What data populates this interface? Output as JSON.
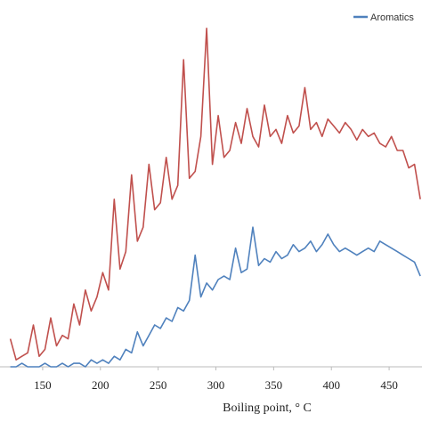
{
  "chart_data": {
    "type": "line",
    "x_label": "Boiling point, ° C",
    "x": [
      122,
      127,
      132,
      137,
      142,
      147,
      152,
      157,
      162,
      167,
      172,
      177,
      182,
      187,
      192,
      197,
      202,
      207,
      212,
      217,
      222,
      227,
      232,
      237,
      242,
      247,
      252,
      257,
      262,
      267,
      272,
      277,
      282,
      287,
      292,
      297,
      302,
      307,
      312,
      317,
      322,
      327,
      332,
      337,
      342,
      347,
      352,
      357,
      362,
      367,
      372,
      377,
      382,
      387,
      392,
      397,
      402,
      407,
      412,
      417,
      422,
      427,
      432,
      437,
      442,
      447,
      452,
      457,
      462,
      467,
      472,
      477
    ],
    "series": [
      {
        "color": "#c0504d",
        "values": [
          8,
          2,
          3,
          4,
          12,
          3,
          5,
          14,
          6,
          9,
          8,
          18,
          12,
          22,
          16,
          20,
          27,
          22,
          48,
          28,
          33,
          55,
          36,
          40,
          58,
          45,
          47,
          60,
          48,
          52,
          88,
          54,
          56,
          66,
          97,
          58,
          72,
          60,
          62,
          70,
          64,
          74,
          66,
          63,
          75,
          66,
          68,
          64,
          72,
          67,
          69,
          80,
          68,
          70,
          66,
          71,
          69,
          67,
          70,
          68,
          65,
          68,
          66,
          67,
          64,
          63,
          66,
          62,
          62,
          57,
          58,
          48
        ]
      },
      {
        "name": "Aromatics",
        "color": "#4f81bd",
        "values": [
          0,
          0,
          1,
          0,
          0,
          0,
          1,
          0,
          0,
          1,
          0,
          1,
          1,
          0,
          2,
          1,
          2,
          1,
          3,
          2,
          5,
          4,
          10,
          6,
          9,
          12,
          11,
          14,
          13,
          17,
          16,
          19,
          32,
          20,
          24,
          22,
          25,
          26,
          25,
          34,
          27,
          28,
          40,
          29,
          31,
          30,
          33,
          31,
          32,
          35,
          33,
          34,
          36,
          33,
          35,
          38,
          35,
          33,
          34,
          33,
          32,
          33,
          34,
          33,
          36,
          35,
          34,
          33,
          32,
          31,
          30,
          26
        ]
      }
    ],
    "xlim": [
      120,
      480
    ],
    "xticks": [
      150,
      200,
      250,
      300,
      350,
      400,
      450
    ],
    "ylim": [
      0,
      100
    ],
    "legend": "top-right"
  }
}
